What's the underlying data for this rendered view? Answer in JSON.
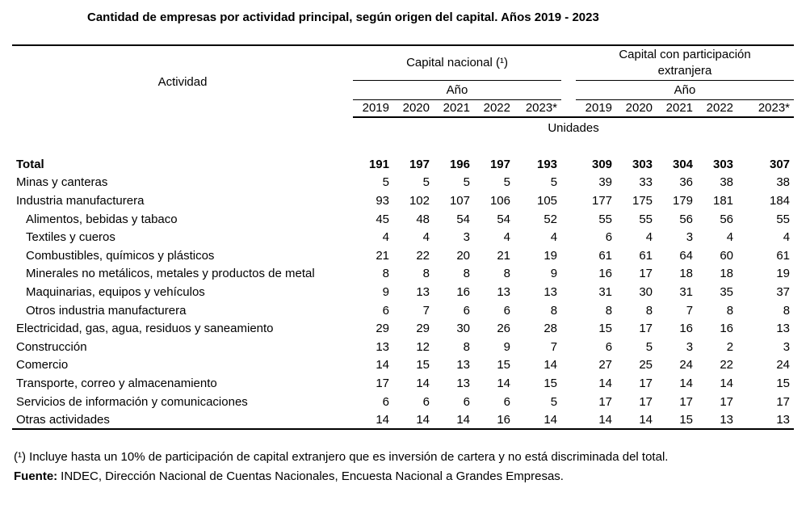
{
  "title": "Cantidad de empresas por actividad principal, según origen del capital. Años 2019 - 2023",
  "header": {
    "activity": "Actividad",
    "group_national": "Capital nacional (¹)",
    "group_foreign_line1": "Capital con participación",
    "group_foreign_line2": "extranjera",
    "year_label": "Año",
    "unit": "Unidades"
  },
  "footnotes": {
    "note1": "(¹) Incluye hasta un 10% de participación de capital extranjero que es inversión de cartera y no está discriminada del total.",
    "source_label": "Fuente:",
    "source_text": "INDEC, Dirección Nacional de Cuentas Nacionales, Encuesta Nacional a Grandes Empresas."
  },
  "chart_data": {
    "type": "table",
    "title": "Cantidad de empresas por actividad principal, según origen del capital. Años 2019 - 2023",
    "unit": "Unidades",
    "column_groups": [
      "Capital nacional (¹)",
      "Capital con participación extranjera"
    ],
    "years": [
      "2019",
      "2020",
      "2021",
      "2022",
      "2023*"
    ],
    "rows": [
      {
        "actividad": "Total",
        "bold": true,
        "indent": false,
        "capital_nacional": [
          191,
          197,
          196,
          197,
          193
        ],
        "capital_extranjera": [
          309,
          303,
          304,
          303,
          307
        ]
      },
      {
        "actividad": "Minas y canteras",
        "bold": false,
        "indent": false,
        "capital_nacional": [
          5,
          5,
          5,
          5,
          5
        ],
        "capital_extranjera": [
          39,
          33,
          36,
          38,
          38
        ]
      },
      {
        "actividad": "Industria manufacturera",
        "bold": false,
        "indent": false,
        "capital_nacional": [
          93,
          102,
          107,
          106,
          105
        ],
        "capital_extranjera": [
          177,
          175,
          179,
          181,
          184
        ]
      },
      {
        "actividad": "Alimentos, bebidas y tabaco",
        "bold": false,
        "indent": true,
        "capital_nacional": [
          45,
          48,
          54,
          54,
          52
        ],
        "capital_extranjera": [
          55,
          55,
          56,
          56,
          55
        ]
      },
      {
        "actividad": "Textiles y cueros",
        "bold": false,
        "indent": true,
        "capital_nacional": [
          4,
          4,
          3,
          4,
          4
        ],
        "capital_extranjera": [
          6,
          4,
          3,
          4,
          4
        ]
      },
      {
        "actividad": "Combustibles, químicos y plásticos",
        "bold": false,
        "indent": true,
        "capital_nacional": [
          21,
          22,
          20,
          21,
          19
        ],
        "capital_extranjera": [
          61,
          61,
          64,
          60,
          61
        ]
      },
      {
        "actividad": "Minerales no metálicos, metales y productos de metal",
        "bold": false,
        "indent": true,
        "capital_nacional": [
          8,
          8,
          8,
          8,
          9
        ],
        "capital_extranjera": [
          16,
          17,
          18,
          18,
          19
        ]
      },
      {
        "actividad": "Maquinarias, equipos y vehículos",
        "bold": false,
        "indent": true,
        "capital_nacional": [
          9,
          13,
          16,
          13,
          13
        ],
        "capital_extranjera": [
          31,
          30,
          31,
          35,
          37
        ]
      },
      {
        "actividad": "Otros industria manufacturera",
        "bold": false,
        "indent": true,
        "capital_nacional": [
          6,
          7,
          6,
          6,
          8
        ],
        "capital_extranjera": [
          8,
          8,
          7,
          8,
          8
        ]
      },
      {
        "actividad": "Electricidad, gas, agua, residuos y saneamiento",
        "bold": false,
        "indent": false,
        "capital_nacional": [
          29,
          29,
          30,
          26,
          28
        ],
        "capital_extranjera": [
          15,
          17,
          16,
          16,
          13
        ]
      },
      {
        "actividad": "Construcción",
        "bold": false,
        "indent": false,
        "capital_nacional": [
          13,
          12,
          8,
          9,
          7
        ],
        "capital_extranjera": [
          6,
          5,
          3,
          2,
          3
        ]
      },
      {
        "actividad": "Comercio",
        "bold": false,
        "indent": false,
        "capital_nacional": [
          14,
          15,
          13,
          15,
          14
        ],
        "capital_extranjera": [
          27,
          25,
          24,
          22,
          24
        ]
      },
      {
        "actividad": "Transporte, correo y almacenamiento",
        "bold": false,
        "indent": false,
        "capital_nacional": [
          17,
          14,
          13,
          14,
          15
        ],
        "capital_extranjera": [
          14,
          17,
          14,
          14,
          15
        ]
      },
      {
        "actividad": "Servicios de información y comunicaciones",
        "bold": false,
        "indent": false,
        "capital_nacional": [
          6,
          6,
          6,
          6,
          5
        ],
        "capital_extranjera": [
          17,
          17,
          17,
          17,
          17
        ]
      },
      {
        "actividad": "Otras actividades",
        "bold": false,
        "indent": false,
        "capital_nacional": [
          14,
          14,
          14,
          16,
          14
        ],
        "capital_extranjera": [
          14,
          14,
          15,
          13,
          13
        ]
      }
    ]
  }
}
